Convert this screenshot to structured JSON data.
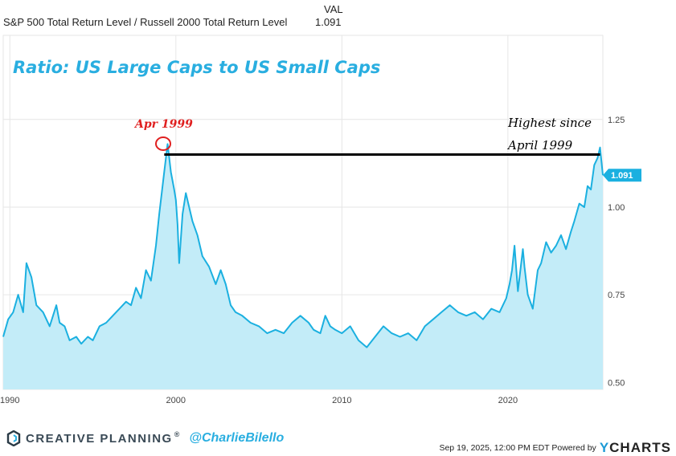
{
  "header": {
    "series_label": "S&P 500 Total Return Level / Russell 2000 Total Return Level",
    "column_label": "VAL",
    "value": "1.091"
  },
  "chart_data": {
    "type": "area",
    "title": "Ratio: US Large Caps to US Small Caps",
    "xlabel": "",
    "ylabel": "",
    "xlim": [
      1989.6,
      2025.72
    ],
    "ylim": [
      0.48,
      1.49
    ],
    "y_ticks": [
      0.5,
      0.75,
      1.0,
      1.25
    ],
    "y_tick_labels": [
      "0.50",
      "0.75",
      "1.00",
      "1.25"
    ],
    "x_ticks": [
      1990,
      2000,
      2010,
      2020
    ],
    "x_tick_labels": [
      "1990",
      "2000",
      "2010",
      "2020"
    ],
    "series": [
      {
        "name": "S&P 500 Total Return Level / Russell 2000 Total Return Level",
        "x": [
          1989.6,
          1989.9,
          1990.2,
          1990.5,
          1990.8,
          1991.0,
          1991.3,
          1991.6,
          1992.0,
          1992.4,
          1992.8,
          1993.0,
          1993.3,
          1993.6,
          1994.0,
          1994.3,
          1994.7,
          1995.0,
          1995.4,
          1995.8,
          1996.2,
          1996.6,
          1997.0,
          1997.3,
          1997.6,
          1997.9,
          1998.2,
          1998.5,
          1998.8,
          1999.0,
          1999.15,
          1999.3,
          1999.5,
          1999.7,
          1999.9,
          2000.0,
          2000.1,
          2000.2,
          2000.4,
          2000.6,
          2000.8,
          2001.0,
          2001.3,
          2001.6,
          2002.0,
          2002.4,
          2002.7,
          2003.0,
          2003.3,
          2003.6,
          2004.0,
          2004.5,
          2005.0,
          2005.5,
          2006.0,
          2006.5,
          2007.0,
          2007.5,
          2008.0,
          2008.3,
          2008.7,
          2009.0,
          2009.3,
          2009.6,
          2010.0,
          2010.5,
          2011.0,
          2011.5,
          2012.0,
          2012.5,
          2013.0,
          2013.5,
          2014.0,
          2014.5,
          2015.0,
          2015.5,
          2016.0,
          2016.5,
          2017.0,
          2017.5,
          2018.0,
          2018.5,
          2019.0,
          2019.5,
          2019.9,
          2020.1,
          2020.25,
          2020.4,
          2020.6,
          2020.9,
          2021.0,
          2021.2,
          2021.5,
          2021.8,
          2022.0,
          2022.3,
          2022.6,
          2022.9,
          2023.2,
          2023.5,
          2023.8,
          2024.0,
          2024.3,
          2024.6,
          2024.8,
          2025.0,
          2025.2,
          2025.4,
          2025.55,
          2025.72
        ],
        "values": [
          0.63,
          0.68,
          0.7,
          0.75,
          0.7,
          0.84,
          0.8,
          0.72,
          0.7,
          0.66,
          0.72,
          0.67,
          0.66,
          0.62,
          0.63,
          0.61,
          0.63,
          0.62,
          0.66,
          0.67,
          0.69,
          0.71,
          0.73,
          0.72,
          0.77,
          0.74,
          0.82,
          0.79,
          0.89,
          0.98,
          1.04,
          1.1,
          1.18,
          1.1,
          1.05,
          1.02,
          0.95,
          0.84,
          0.98,
          1.04,
          1.0,
          0.96,
          0.92,
          0.86,
          0.83,
          0.78,
          0.82,
          0.78,
          0.72,
          0.7,
          0.69,
          0.67,
          0.66,
          0.64,
          0.65,
          0.64,
          0.67,
          0.69,
          0.67,
          0.65,
          0.64,
          0.69,
          0.66,
          0.65,
          0.64,
          0.66,
          0.62,
          0.6,
          0.63,
          0.66,
          0.64,
          0.63,
          0.64,
          0.62,
          0.66,
          0.68,
          0.7,
          0.72,
          0.7,
          0.69,
          0.7,
          0.68,
          0.71,
          0.7,
          0.74,
          0.78,
          0.82,
          0.89,
          0.76,
          0.88,
          0.83,
          0.75,
          0.71,
          0.82,
          0.84,
          0.9,
          0.87,
          0.89,
          0.92,
          0.88,
          0.93,
          0.96,
          1.01,
          1.0,
          1.06,
          1.05,
          1.12,
          1.14,
          1.17,
          1.091
        ]
      }
    ],
    "annotations": [
      {
        "text": "Apr 1999",
        "x": 1999.3,
        "y": 1.19,
        "color": "#e02020"
      },
      {
        "text": "Highest since",
        "color": "#000000"
      },
      {
        "text": "April 1999",
        "color": "#000000"
      }
    ],
    "reference_line": {
      "value": 1.15,
      "x_start": 1999.3,
      "x_end": 2025.55
    },
    "last_value_label": "1.091",
    "colors": {
      "line": "#1bb0e0",
      "fill": "#c3ecf8",
      "grid": "#e6e6e6",
      "ann_red": "#e02020",
      "title": "#29aee0",
      "badge": "#1bb0e0"
    }
  },
  "footer": {
    "brand": "CREATIVE PLANNING",
    "brand_mark": "®",
    "handle": "@CharlieBilello",
    "timestamp": "Sep 19, 2025, 12:00 PM EDT Powered by",
    "ycharts_y": "Y",
    "ycharts_rest": "CHARTS"
  }
}
